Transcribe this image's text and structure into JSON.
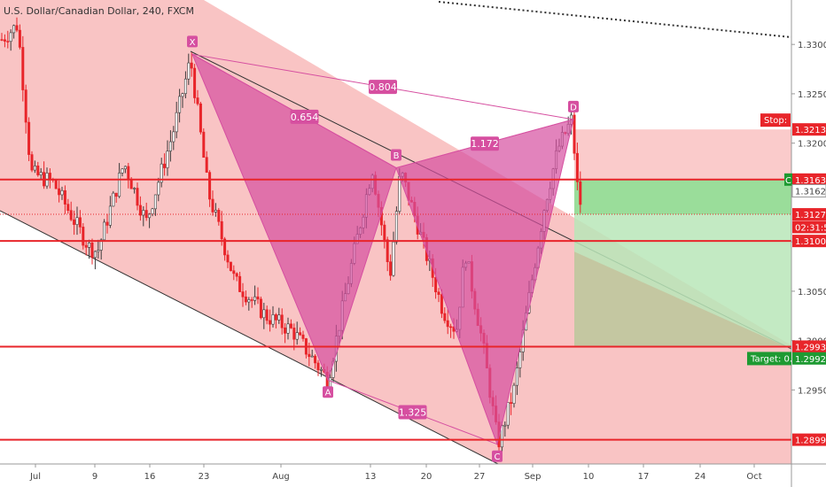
{
  "chart_data": {
    "type": "candlestick",
    "title": "U.S. Dollar/Canadian Dollar, 240, FXCM",
    "x_ticks": [
      "Jul",
      "9",
      "16",
      "23",
      "Aug",
      "13",
      "20",
      "27",
      "Sep",
      "10",
      "17",
      "24",
      "Oct"
    ],
    "y_ticks": [
      "1.33000",
      "1.32500",
      "1.32000",
      "1.31500",
      "1.31000",
      "1.30500",
      "1.30000",
      "1.29500"
    ],
    "ylim": [
      1.2875,
      1.3345
    ],
    "pattern_points": [
      {
        "label": "X",
        "value": 1.329
      },
      {
        "label": "A",
        "value": 1.296
      },
      {
        "label": "B",
        "value": 1.3175
      },
      {
        "label": "C",
        "value": 1.2895
      },
      {
        "label": "D",
        "value": 1.3224
      }
    ],
    "ratios": [
      "0.654",
      "0.804",
      "1.172",
      "1.325"
    ],
    "horizontal_levels": [
      1.31631,
      1.31009,
      1.29939,
      1.28996
    ],
    "price_labels": [
      {
        "text": "Stop: ",
        "value": 1.32139,
        "color": "#e8252a"
      },
      {
        "text": "1.32139",
        "value": 1.32139,
        "color": "#e8252a"
      },
      {
        "text": "C",
        "value": 1.31631,
        "color": "#1e9a32"
      },
      {
        "text": "1.31631",
        "value": 1.31631,
        "color": "#e8252a"
      },
      {
        "text": "1.31625",
        "value": 1.31625,
        "color": "#444444"
      },
      {
        "text": "1.31279",
        "value": 1.31279,
        "color": "#e8252a"
      },
      {
        "text": "02:31:53",
        "value": 1.3115,
        "color": "#e8252a"
      },
      {
        "text": "1.31009",
        "value": 1.31009,
        "color": "#e8252a"
      },
      {
        "text": "Target: 0.",
        "value": 1.29939,
        "color": "#1e9a32"
      },
      {
        "text": "1.29939",
        "value": 1.29939,
        "color": "#e8252a"
      },
      {
        "text": "1.29927",
        "value": 1.29927,
        "color": "#1e9a32"
      },
      {
        "text": "1.28996",
        "value": 1.28996,
        "color": "#e8252a"
      }
    ],
    "colors": {
      "up": "#26a69a",
      "down": "#e8252a",
      "pattern": "#d64fa0",
      "channel": "#f7b0b0",
      "level": "#e8252a",
      "profit": "#b9e6b9",
      "loss": "#f9c8c8"
    }
  }
}
